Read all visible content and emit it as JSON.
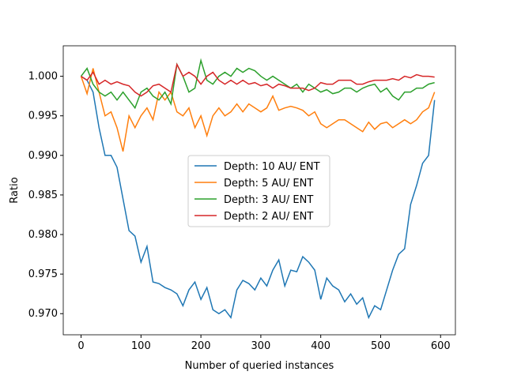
{
  "chart_data": {
    "type": "line",
    "xlabel": "Number of queried instances",
    "ylabel": "Ratio",
    "x": [
      0,
      10,
      20,
      30,
      40,
      50,
      60,
      70,
      80,
      90,
      100,
      110,
      120,
      130,
      140,
      150,
      160,
      170,
      180,
      190,
      200,
      210,
      220,
      230,
      240,
      250,
      260,
      270,
      280,
      290,
      300,
      310,
      320,
      330,
      340,
      350,
      360,
      370,
      380,
      390,
      400,
      410,
      420,
      430,
      440,
      450,
      460,
      470,
      480,
      490,
      500,
      510,
      520,
      530,
      540,
      550,
      560,
      570,
      580,
      590
    ],
    "series": [
      {
        "name": "Depth: 10 AU/ ENT",
        "color": "#1f77b4",
        "values": [
          1.0,
          0.9995,
          0.998,
          0.9935,
          0.99,
          0.99,
          0.9885,
          0.9845,
          0.9805,
          0.9798,
          0.9765,
          0.9785,
          0.974,
          0.9738,
          0.9733,
          0.973,
          0.9725,
          0.971,
          0.973,
          0.974,
          0.9718,
          0.9733,
          0.9705,
          0.97,
          0.9705,
          0.9695,
          0.973,
          0.9742,
          0.9738,
          0.973,
          0.9745,
          0.9735,
          0.9755,
          0.9768,
          0.9735,
          0.9755,
          0.9753,
          0.9772,
          0.9765,
          0.9755,
          0.9718,
          0.9745,
          0.9735,
          0.973,
          0.9715,
          0.9725,
          0.9712,
          0.972,
          0.9695,
          0.971,
          0.9705,
          0.973,
          0.9755,
          0.9775,
          0.9782,
          0.9838,
          0.9862,
          0.989,
          0.99,
          0.997
        ]
      },
      {
        "name": "Depth: 5 AU/ ENT",
        "color": "#ff7f0e",
        "values": [
          1.0,
          0.9978,
          1.001,
          0.998,
          0.995,
          0.9955,
          0.9935,
          0.9905,
          0.995,
          0.9935,
          0.995,
          0.996,
          0.9945,
          0.998,
          0.997,
          0.998,
          0.9955,
          0.995,
          0.996,
          0.9935,
          0.995,
          0.9925,
          0.995,
          0.996,
          0.995,
          0.9955,
          0.9965,
          0.9955,
          0.9965,
          0.996,
          0.9955,
          0.996,
          0.9975,
          0.9957,
          0.996,
          0.9962,
          0.996,
          0.9957,
          0.995,
          0.9955,
          0.994,
          0.9935,
          0.994,
          0.9945,
          0.9945,
          0.994,
          0.9935,
          0.993,
          0.9942,
          0.9933,
          0.994,
          0.9942,
          0.9935,
          0.994,
          0.9945,
          0.994,
          0.9945,
          0.9955,
          0.996,
          0.998
        ]
      },
      {
        "name": "Depth: 3 AU/ ENT",
        "color": "#2ca02c",
        "values": [
          1.0,
          1.001,
          0.999,
          0.998,
          0.9975,
          0.998,
          0.997,
          0.998,
          0.997,
          0.996,
          0.998,
          0.9985,
          0.9975,
          0.997,
          0.998,
          0.9965,
          1.0015,
          1.0,
          0.998,
          0.9985,
          1.002,
          0.9995,
          0.999,
          1.0,
          1.0005,
          1.0,
          1.001,
          1.0005,
          1.001,
          1.0007,
          1.0,
          0.9995,
          1.0,
          0.9995,
          0.999,
          0.9985,
          0.999,
          0.998,
          0.999,
          0.9985,
          0.998,
          0.9983,
          0.9978,
          0.998,
          0.9985,
          0.9985,
          0.998,
          0.9985,
          0.9988,
          0.999,
          0.998,
          0.9985,
          0.9975,
          0.997,
          0.998,
          0.998,
          0.9985,
          0.9985,
          0.999,
          0.9992
        ]
      },
      {
        "name": "Depth: 2 AU/ ENT",
        "color": "#d62728",
        "values": [
          1.0,
          0.9995,
          1.0005,
          0.999,
          0.9995,
          0.999,
          0.9993,
          0.999,
          0.9988,
          0.998,
          0.9975,
          0.998,
          0.9988,
          0.999,
          0.9985,
          0.998,
          1.0015,
          1.0,
          1.0005,
          1.0,
          0.999,
          1.0,
          1.0005,
          0.9995,
          0.999,
          0.9995,
          0.999,
          0.9995,
          0.999,
          0.9992,
          0.9988,
          0.999,
          0.9985,
          0.999,
          0.9988,
          0.9985,
          0.9985,
          0.9985,
          0.9982,
          0.9985,
          0.9992,
          0.999,
          0.999,
          0.9995,
          0.9995,
          0.9995,
          0.999,
          0.999,
          0.9993,
          0.9995,
          0.9995,
          0.9995,
          0.9997,
          0.9995,
          1.0,
          0.9998,
          1.0002,
          1.0,
          1.0,
          0.9999
        ]
      }
    ],
    "xlim": [
      -29.75,
      624.75
    ],
    "ylim": [
      0.96733,
      1.00385
    ],
    "xticks": [
      0,
      100,
      200,
      300,
      400,
      500,
      600
    ],
    "yticks": [
      {
        "value": 0.97,
        "label": "0.970"
      },
      0.975,
      {
        "value": 0.98,
        "label": "0.980"
      },
      0.985,
      {
        "value": 0.99,
        "label": "0.990"
      },
      0.995,
      {
        "value": 1.0,
        "label": "1.000"
      }
    ],
    "legend": "center"
  }
}
